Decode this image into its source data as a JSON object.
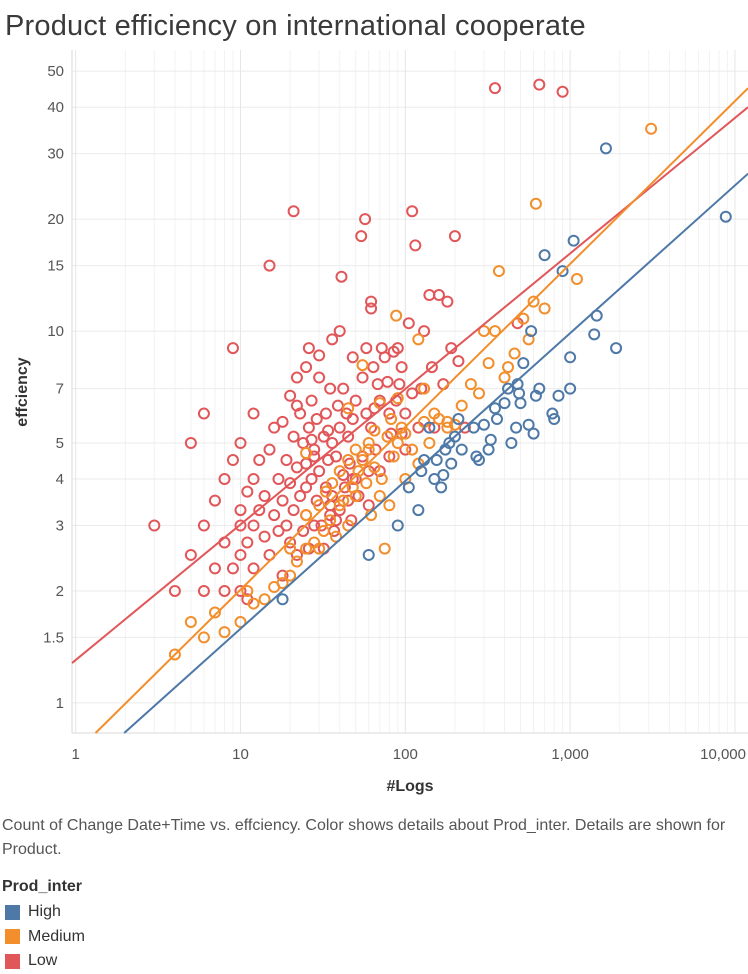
{
  "title": "Product efficiency on international cooperate",
  "caption": "Count of Change Date+Time vs. effciency.  Color shows details about Prod_inter.  Details are shown for Product.",
  "legend": {
    "title": "Prod_inter",
    "items": [
      {
        "label": "High",
        "color": "#4e79a7"
      },
      {
        "label": "Medium",
        "color": "#f28e2b"
      },
      {
        "label": "Low",
        "color": "#e15759"
      }
    ]
  },
  "chart_data": {
    "type": "scatter",
    "xlabel": "#Logs",
    "ylabel": "effciency",
    "x_scale": "log",
    "y_scale": "log",
    "xlim": [
      0.95,
      12000
    ],
    "ylim": [
      0.83,
      57
    ],
    "grid": true,
    "x_ticks": [
      {
        "value": 1,
        "label": "1"
      },
      {
        "value": 10,
        "label": "10"
      },
      {
        "value": 100,
        "label": "100"
      },
      {
        "value": 1000,
        "label": "1,000"
      },
      {
        "value": 10000,
        "label": "10,000"
      }
    ],
    "y_ticks": [
      {
        "value": 1,
        "label": "1"
      },
      {
        "value": 1.5,
        "label": "1.5"
      },
      {
        "value": 2,
        "label": "2"
      },
      {
        "value": 3,
        "label": "3"
      },
      {
        "value": 4,
        "label": "4"
      },
      {
        "value": 5,
        "label": "5"
      },
      {
        "value": 7,
        "label": "7"
      },
      {
        "value": 10,
        "label": "10"
      },
      {
        "value": 15,
        "label": "15"
      },
      {
        "value": 20,
        "label": "20"
      },
      {
        "value": 30,
        "label": "30"
      },
      {
        "value": 40,
        "label": "40"
      },
      {
        "value": 50,
        "label": "50"
      }
    ],
    "series": [
      {
        "name": "High",
        "color": "#4e79a7",
        "trend": [
          [
            1.97,
            0.83
          ],
          [
            12000,
            26.5
          ]
        ],
        "points": [
          [
            18,
            1.9
          ],
          [
            60,
            2.5
          ],
          [
            90,
            3.0
          ],
          [
            105,
            3.8
          ],
          [
            120,
            3.3
          ],
          [
            125,
            4.2
          ],
          [
            130,
            4.5
          ],
          [
            140,
            5.5
          ],
          [
            150,
            4.0
          ],
          [
            155,
            4.5
          ],
          [
            165,
            3.8
          ],
          [
            170,
            4.1
          ],
          [
            175,
            4.8
          ],
          [
            185,
            5.0
          ],
          [
            190,
            4.4
          ],
          [
            200,
            5.2
          ],
          [
            210,
            5.8
          ],
          [
            220,
            4.8
          ],
          [
            260,
            5.5
          ],
          [
            270,
            4.6
          ],
          [
            280,
            4.5
          ],
          [
            300,
            5.6
          ],
          [
            320,
            4.8
          ],
          [
            330,
            5.1
          ],
          [
            350,
            6.2
          ],
          [
            360,
            5.8
          ],
          [
            400,
            6.4
          ],
          [
            420,
            7.0
          ],
          [
            440,
            5.0
          ],
          [
            470,
            5.5
          ],
          [
            480,
            7.2
          ],
          [
            490,
            6.8
          ],
          [
            500,
            6.4
          ],
          [
            520,
            8.2
          ],
          [
            560,
            5.6
          ],
          [
            580,
            10.0
          ],
          [
            600,
            5.3
          ],
          [
            620,
            6.7
          ],
          [
            650,
            7.0
          ],
          [
            700,
            16.0
          ],
          [
            780,
            6.0
          ],
          [
            800,
            5.8
          ],
          [
            850,
            6.7
          ],
          [
            900,
            14.5
          ],
          [
            1000,
            8.5
          ],
          [
            1050,
            17.5
          ],
          [
            1000,
            7.0
          ],
          [
            1400,
            9.8
          ],
          [
            1450,
            11.0
          ],
          [
            1650,
            31.0
          ],
          [
            1900,
            9.0
          ],
          [
            8800,
            20.3
          ]
        ]
      },
      {
        "name": "Medium",
        "color": "#f28e2b",
        "trend": [
          [
            1.32,
            0.83
          ],
          [
            12000,
            45.0
          ]
        ],
        "points": [
          [
            4,
            1.35
          ],
          [
            5,
            1.65
          ],
          [
            6,
            1.5
          ],
          [
            7,
            1.75
          ],
          [
            8,
            1.55
          ],
          [
            10,
            1.65
          ],
          [
            11,
            2.0
          ],
          [
            12,
            1.85
          ],
          [
            14,
            1.9
          ],
          [
            16,
            2.05
          ],
          [
            18,
            2.1
          ],
          [
            20,
            2.2
          ],
          [
            22,
            2.4
          ],
          [
            25,
            2.6
          ],
          [
            28,
            2.7
          ],
          [
            30,
            2.6
          ],
          [
            32,
            2.9
          ],
          [
            35,
            3.1
          ],
          [
            38,
            2.8
          ],
          [
            40,
            3.4
          ],
          [
            42,
            3.5
          ],
          [
            45,
            3.0
          ],
          [
            48,
            3.8
          ],
          [
            50,
            3.6
          ],
          [
            52,
            4.2
          ],
          [
            55,
            4.5
          ],
          [
            58,
            3.9
          ],
          [
            60,
            4.8
          ],
          [
            62,
            3.2
          ],
          [
            65,
            4.3
          ],
          [
            70,
            3.6
          ],
          [
            72,
            4.0
          ],
          [
            75,
            2.6
          ],
          [
            78,
            5.2
          ],
          [
            80,
            3.4
          ],
          [
            82,
            5.8
          ],
          [
            85,
            4.6
          ],
          [
            88,
            11.0
          ],
          [
            90,
            5.0
          ],
          [
            95,
            5.5
          ],
          [
            100,
            5.3
          ],
          [
            110,
            4.8
          ],
          [
            120,
            4.4
          ],
          [
            130,
            5.7
          ],
          [
            140,
            5.0
          ],
          [
            150,
            6.0
          ],
          [
            160,
            5.8
          ],
          [
            180,
            5.5
          ],
          [
            200,
            5.6
          ],
          [
            220,
            6.3
          ],
          [
            250,
            7.2
          ],
          [
            280,
            6.8
          ],
          [
            300,
            10.0
          ],
          [
            320,
            8.2
          ],
          [
            350,
            10.0
          ],
          [
            370,
            14.5
          ],
          [
            400,
            7.5
          ],
          [
            420,
            8.0
          ],
          [
            460,
            8.7
          ],
          [
            520,
            10.8
          ],
          [
            560,
            9.5
          ],
          [
            600,
            12.0
          ],
          [
            620,
            22.0
          ],
          [
            700,
            11.5
          ],
          [
            1100,
            13.8
          ],
          [
            3100,
            35.0
          ],
          [
            20,
            2.6
          ],
          [
            25,
            3.2
          ],
          [
            30,
            3.4
          ],
          [
            33,
            3.7
          ],
          [
            36,
            3.9
          ],
          [
            40,
            4.2
          ],
          [
            45,
            4.5
          ],
          [
            50,
            4.8
          ],
          [
            60,
            5.0
          ],
          [
            65,
            5.4
          ],
          [
            70,
            6.4
          ],
          [
            55,
            8.1
          ],
          [
            25,
            4.7
          ],
          [
            100,
            4.0
          ],
          [
            90,
            6.6
          ],
          [
            45,
            6.2
          ],
          [
            120,
            9.5
          ],
          [
            130,
            7.0
          ],
          [
            180,
            5.7
          ]
        ]
      },
      {
        "name": "Low",
        "color": "#e15759",
        "trend": [
          [
            0.95,
            1.28
          ],
          [
            12000,
            40.0
          ]
        ],
        "points": [
          [
            3,
            3.0
          ],
          [
            4,
            2.0
          ],
          [
            5,
            5.0
          ],
          [
            5,
            2.5
          ],
          [
            6,
            3.0
          ],
          [
            6,
            2.0
          ],
          [
            6,
            6.0
          ],
          [
            7,
            2.3
          ],
          [
            7,
            3.5
          ],
          [
            8,
            2.0
          ],
          [
            8,
            4.0
          ],
          [
            8,
            2.7
          ],
          [
            9,
            4.5
          ],
          [
            9,
            2.3
          ],
          [
            9,
            9.0
          ],
          [
            10,
            3.0
          ],
          [
            10,
            2.5
          ],
          [
            10,
            5.0
          ],
          [
            10,
            3.3
          ],
          [
            10,
            2.0
          ],
          [
            11,
            3.7
          ],
          [
            11,
            1.9
          ],
          [
            11,
            2.7
          ],
          [
            12,
            3.0
          ],
          [
            12,
            6.0
          ],
          [
            12,
            4.0
          ],
          [
            12,
            2.3
          ],
          [
            13,
            3.3
          ],
          [
            13,
            4.5
          ],
          [
            14,
            2.8
          ],
          [
            14,
            3.6
          ],
          [
            15,
            15.0
          ],
          [
            15,
            2.5
          ],
          [
            15,
            4.8
          ],
          [
            16,
            5.5
          ],
          [
            16,
            3.2
          ],
          [
            17,
            4.0
          ],
          [
            17,
            2.9
          ],
          [
            18,
            5.7
          ],
          [
            18,
            3.5
          ],
          [
            18,
            2.2
          ],
          [
            19,
            4.5
          ],
          [
            19,
            3.0
          ],
          [
            20,
            6.7
          ],
          [
            20,
            3.9
          ],
          [
            20,
            2.7
          ],
          [
            21,
            21.0
          ],
          [
            21,
            5.2
          ],
          [
            21,
            3.3
          ],
          [
            22,
            7.5
          ],
          [
            22,
            4.3
          ],
          [
            22,
            2.5
          ],
          [
            23,
            6.0
          ],
          [
            23,
            3.6
          ],
          [
            24,
            5.0
          ],
          [
            24,
            2.9
          ],
          [
            25,
            8.0
          ],
          [
            25,
            4.4
          ],
          [
            25,
            3.2
          ],
          [
            26,
            9.0
          ],
          [
            26,
            5.5
          ],
          [
            26,
            2.6
          ],
          [
            27,
            4.0
          ],
          [
            27,
            6.5
          ],
          [
            28,
            3.0
          ],
          [
            28,
            4.8
          ],
          [
            29,
            5.8
          ],
          [
            29,
            3.5
          ],
          [
            30,
            7.5
          ],
          [
            30,
            4.2
          ],
          [
            31,
            3.0
          ],
          [
            32,
            5.2
          ],
          [
            32,
            2.6
          ],
          [
            33,
            6.0
          ],
          [
            33,
            3.8
          ],
          [
            34,
            4.5
          ],
          [
            35,
            7.0
          ],
          [
            35,
            3.4
          ],
          [
            36,
            9.5
          ],
          [
            36,
            5.0
          ],
          [
            37,
            2.9
          ],
          [
            38,
            3.1
          ],
          [
            38,
            4.6
          ],
          [
            39,
            6.3
          ],
          [
            40,
            10.0
          ],
          [
            40,
            5.5
          ],
          [
            40,
            3.3
          ],
          [
            41,
            14.0
          ],
          [
            42,
            7.0
          ],
          [
            42,
            4.1
          ],
          [
            43,
            3.8
          ],
          [
            44,
            6.0
          ],
          [
            45,
            5.2
          ],
          [
            45,
            3.5
          ],
          [
            46,
            4.4
          ],
          [
            47,
            3.1
          ],
          [
            48,
            8.5
          ],
          [
            48,
            5.8
          ],
          [
            50,
            6.5
          ],
          [
            50,
            4.0
          ],
          [
            52,
            3.6
          ],
          [
            54,
            18.0
          ],
          [
            55,
            7.5
          ],
          [
            55,
            4.6
          ],
          [
            57,
            20.0
          ],
          [
            58,
            9.0
          ],
          [
            58,
            6.0
          ],
          [
            60,
            4.2
          ],
          [
            60,
            3.4
          ],
          [
            62,
            5.5
          ],
          [
            62,
            12.0
          ],
          [
            64,
            8.0
          ],
          [
            65,
            6.2
          ],
          [
            66,
            4.8
          ],
          [
            68,
            7.2
          ],
          [
            70,
            6.5
          ],
          [
            70,
            4.2
          ],
          [
            72,
            9.0
          ],
          [
            75,
            8.5
          ],
          [
            78,
            7.3
          ],
          [
            80,
            6.0
          ],
          [
            80,
            4.6
          ],
          [
            82,
            5.3
          ],
          [
            85,
            8.8
          ],
          [
            88,
            6.5
          ],
          [
            90,
            9.0
          ],
          [
            92,
            7.2
          ],
          [
            95,
            8.0
          ],
          [
            95,
            5.3
          ],
          [
            100,
            6.0
          ],
          [
            100,
            4.8
          ],
          [
            105,
            10.5
          ],
          [
            110,
            6.8
          ],
          [
            110,
            21.0
          ],
          [
            115,
            17.0
          ],
          [
            120,
            5.5
          ],
          [
            125,
            7.0
          ],
          [
            130,
            10.0
          ],
          [
            140,
            12.5
          ],
          [
            145,
            8.0
          ],
          [
            150,
            5.5
          ],
          [
            160,
            12.5
          ],
          [
            170,
            7.2
          ],
          [
            180,
            12.0
          ],
          [
            190,
            9.0
          ],
          [
            200,
            18.0
          ],
          [
            210,
            8.3
          ],
          [
            230,
            5.5
          ],
          [
            350,
            45.0
          ],
          [
            480,
            10.5
          ],
          [
            650,
            46.0
          ],
          [
            900,
            44.0
          ],
          [
            30,
            8.6
          ],
          [
            22,
            6.3
          ],
          [
            27,
            5.1
          ],
          [
            34,
            5.4
          ],
          [
            28,
            4.6
          ],
          [
            36,
            3.6
          ],
          [
            62,
            11.5
          ],
          [
            25,
            3.8
          ],
          [
            35,
            3.2
          ],
          [
            48,
            4.0
          ]
        ]
      }
    ]
  }
}
